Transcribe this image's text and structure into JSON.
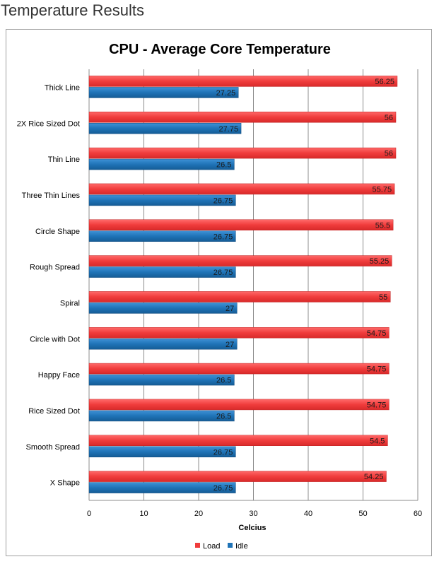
{
  "page": {
    "heading": "Temperature Results"
  },
  "chart_data": {
    "type": "bar",
    "orientation": "horizontal",
    "title": "CPU - Average Core Temperature",
    "xlabel": "Celcius",
    "ylabel": "",
    "xlim": [
      0,
      60
    ],
    "xticks": [
      0,
      10,
      20,
      30,
      40,
      50,
      60
    ],
    "grid": true,
    "legend_position": "bottom",
    "categories": [
      "Thick Line",
      "2X Rice Sized Dot",
      "Thin Line",
      "Three Thin Lines",
      "Circle Shape",
      "Rough Spread",
      "Spiral",
      "Circle with Dot",
      "Happy Face",
      "Rice Sized Dot",
      "Smooth Spread",
      "X Shape"
    ],
    "series": [
      {
        "name": "Load",
        "color": "#f03c3c",
        "values": [
          56.25,
          56,
          56,
          55.75,
          55.5,
          55.25,
          55,
          54.75,
          54.75,
          54.75,
          54.5,
          54.25
        ]
      },
      {
        "name": "Idle",
        "color": "#1f73b7",
        "values": [
          27.25,
          27.75,
          26.5,
          26.75,
          26.75,
          26.75,
          27,
          27,
          26.5,
          26.5,
          26.75,
          26.75
        ]
      }
    ]
  }
}
